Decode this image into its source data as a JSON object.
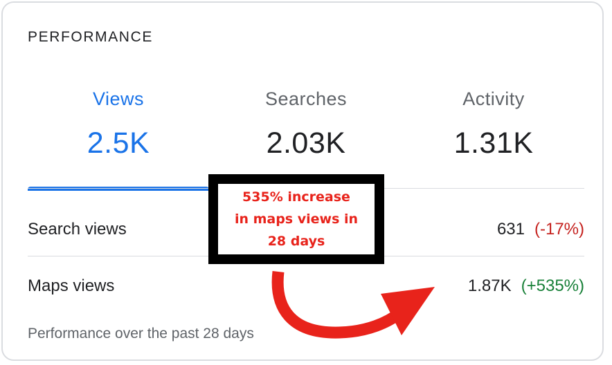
{
  "card": {
    "title": "PERFORMANCE"
  },
  "tabs": [
    {
      "label": "Views",
      "value": "2.5K",
      "active": true
    },
    {
      "label": "Searches",
      "value": "2.03K",
      "active": false
    },
    {
      "label": "Activity",
      "value": "1.31K",
      "active": false
    }
  ],
  "rows": [
    {
      "label": "Search views",
      "value": "631",
      "change": "(-17%)",
      "trend": "negative"
    },
    {
      "label": "Maps views",
      "value": "1.87K",
      "change": "(+535%)",
      "trend": "positive"
    }
  ],
  "footer_note": "Performance over the past 28 days",
  "annotation": {
    "lines": [
      "535% increase",
      "in maps views in",
      "28 days"
    ],
    "arrow_icon": "curved-arrow-icon"
  },
  "colors": {
    "accent": "#1a73e8",
    "negative": "#c5221f",
    "positive": "#188038",
    "annotation_red": "#e8231b",
    "annotation_border": "#000000",
    "card_border": "#dadce0"
  }
}
